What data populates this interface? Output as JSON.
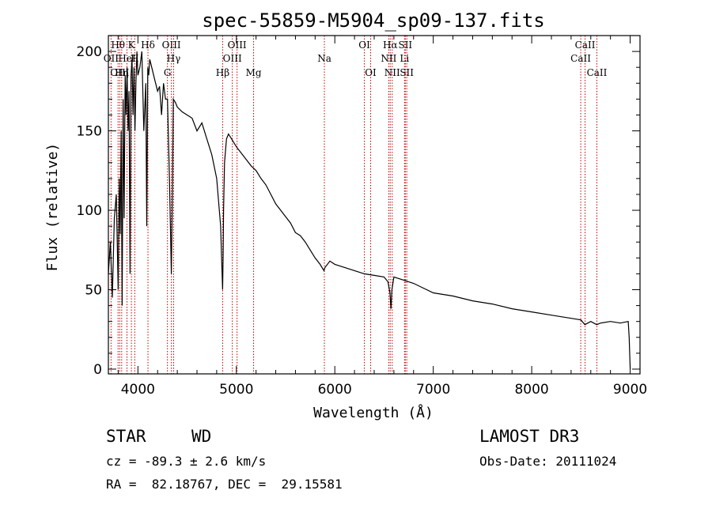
{
  "chart_data": {
    "type": "line",
    "title": "spec-55859-M5904_sp09-137.fits",
    "xlabel": "Wavelength (Å)",
    "ylabel": "Flux (relative)",
    "xlim": [
      3700,
      9100
    ],
    "ylim": [
      -3,
      210
    ],
    "xticks": [
      4000,
      5000,
      6000,
      7000,
      8000,
      9000
    ],
    "yticks": [
      0,
      50,
      100,
      150,
      200
    ],
    "series": [
      {
        "name": "spectrum",
        "x": [
          3700,
          3720,
          3740,
          3760,
          3780,
          3800,
          3810,
          3820,
          3830,
          3840,
          3850,
          3860,
          3870,
          3880,
          3890,
          3900,
          3910,
          3920,
          3930,
          3940,
          3950,
          3960,
          3970,
          3980,
          3990,
          4000,
          4020,
          4040,
          4060,
          4080,
          4090,
          4100,
          4110,
          4120,
          4140,
          4160,
          4180,
          4200,
          4220,
          4240,
          4260,
          4280,
          4300,
          4320,
          4330,
          4340,
          4350,
          4360,
          4380,
          4400,
          4450,
          4500,
          4550,
          4600,
          4650,
          4700,
          4750,
          4800,
          4820,
          4840,
          4850,
          4860,
          4865,
          4870,
          4880,
          4900,
          4920,
          4950,
          5000,
          5050,
          5100,
          5150,
          5200,
          5250,
          5300,
          5350,
          5400,
          5450,
          5500,
          5550,
          5600,
          5650,
          5700,
          5750,
          5800,
          5850,
          5890,
          5900,
          5950,
          6000,
          6100,
          6200,
          6300,
          6400,
          6500,
          6540,
          6560,
          6570,
          6580,
          6600,
          6700,
          6800,
          6900,
          7000,
          7200,
          7400,
          7600,
          7800,
          8000,
          8200,
          8400,
          8500,
          8540,
          8600,
          8660,
          8700,
          8800,
          8900,
          8980,
          8990,
          9000
        ],
        "values": [
          60,
          80,
          45,
          95,
          110,
          50,
          120,
          85,
          150,
          40,
          170,
          95,
          185,
          160,
          190,
          150,
          175,
          60,
          185,
          195,
          160,
          190,
          150,
          180,
          200,
          185,
          190,
          200,
          150,
          180,
          90,
          190,
          185,
          195,
          190,
          185,
          180,
          175,
          178,
          160,
          180,
          170,
          170,
          120,
          90,
          60,
          110,
          170,
          168,
          165,
          162,
          160,
          158,
          150,
          155,
          145,
          135,
          120,
          105,
          90,
          70,
          50,
          70,
          100,
          130,
          145,
          148,
          145,
          140,
          136,
          132,
          128,
          125,
          120,
          116,
          110,
          104,
          100,
          96,
          92,
          86,
          84,
          80,
          75,
          70,
          66,
          62,
          64,
          68,
          66,
          64,
          62,
          60,
          59,
          58,
          55,
          48,
          38,
          50,
          58,
          56,
          54,
          51,
          48,
          46,
          43,
          41,
          38,
          36,
          34,
          32,
          31,
          28,
          30,
          28,
          29,
          30,
          29,
          30,
          20,
          0
        ]
      }
    ],
    "emission_lines": [
      {
        "label": "OII",
        "wavelength": 3727,
        "row": 1
      },
      {
        "label": "Hθ",
        "wavelength": 3798,
        "row": 0
      },
      {
        "label": "OIII",
        "wavelength": 3815,
        "row": 2
      },
      {
        "label": "Hη",
        "wavelength": 3835,
        "row": 2
      },
      {
        "label": "HeI",
        "wavelength": 3889,
        "row": 1
      },
      {
        "label": "K",
        "wavelength": 3934,
        "row": 0
      },
      {
        "label": "H",
        "wavelength": 3968,
        "row": 1
      },
      {
        "label": "Hδ",
        "wavelength": 4102,
        "row": 0
      },
      {
        "label": "G",
        "wavelength": 4300,
        "row": 2
      },
      {
        "label": "OIII",
        "wavelength": 4340,
        "row": 0
      },
      {
        "label": "Hγ",
        "wavelength": 4363,
        "row": 1
      },
      {
        "label": "Hβ",
        "wavelength": 4861,
        "row": 2
      },
      {
        "label": "OIII",
        "wavelength": 4959,
        "row": 1
      },
      {
        "label": "OIII",
        "wavelength": 5007,
        "row": 0
      },
      {
        "label": "Mg",
        "wavelength": 5175,
        "row": 2
      },
      {
        "label": "Na",
        "wavelength": 5894,
        "row": 1
      },
      {
        "label": "OI",
        "wavelength": 6300,
        "row": 0
      },
      {
        "label": "OI",
        "wavelength": 6364,
        "row": 2
      },
      {
        "label": "NII",
        "wavelength": 6548,
        "row": 1
      },
      {
        "label": "Hα",
        "wavelength": 6563,
        "row": 0
      },
      {
        "label": "NII",
        "wavelength": 6583,
        "row": 2
      },
      {
        "label": "Li",
        "wavelength": 6708,
        "row": 1
      },
      {
        "label": "SII",
        "wavelength": 6716,
        "row": 0
      },
      {
        "label": "SII",
        "wavelength": 6731,
        "row": 2
      },
      {
        "label": "CaII",
        "wavelength": 8498,
        "row": 1
      },
      {
        "label": "CaII",
        "wavelength": 8542,
        "row": 0
      },
      {
        "label": "CaII",
        "wavelength": 8662,
        "row": 2
      }
    ]
  },
  "info": {
    "class_label": "STAR",
    "subclass": "WD",
    "survey": "LAMOST DR3",
    "cz": "cz = -89.3 ± 2.6 km/s",
    "obs_date": "Obs-Date: 20111024",
    "coords": "RA =  82.18767, DEC =  29.15581"
  },
  "colors": {
    "axis": "#000000",
    "line_marker": "#c00000",
    "spectrum": "#000000"
  }
}
